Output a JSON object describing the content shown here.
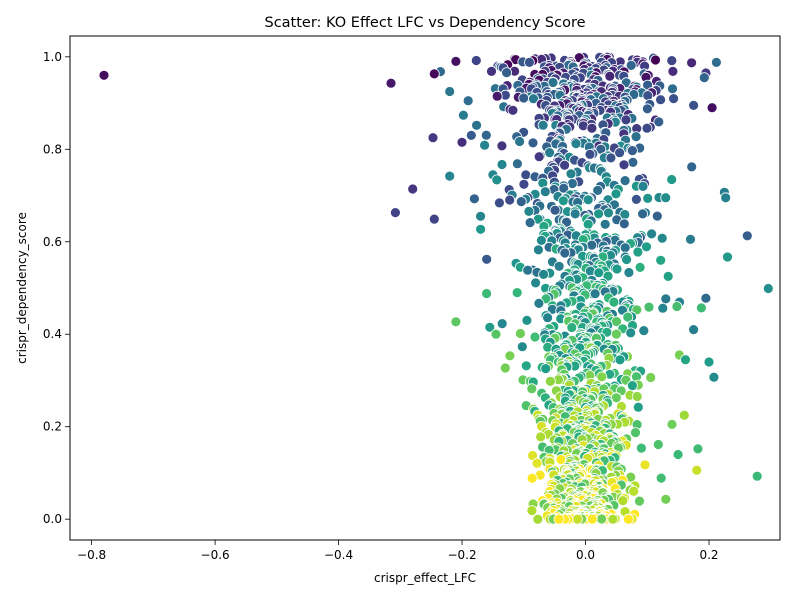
{
  "chart_data": {
    "type": "scatter",
    "title": "Scatter: KO Effect LFC vs Dependency Score",
    "xlabel": "crispr_effect_LFC",
    "ylabel": "crispr_dependency_score",
    "xlim": [
      -0.835,
      0.315
    ],
    "ylim": [
      -0.045,
      1.045
    ],
    "xticks": [
      -0.8,
      -0.6,
      -0.4,
      -0.2,
      0.0,
      0.2
    ],
    "xtick_labels": [
      "−0.8",
      "−0.6",
      "−0.4",
      "−0.2",
      "0.0",
      "0.2"
    ],
    "yticks": [
      0.0,
      0.2,
      0.4,
      0.6,
      0.8,
      1.0
    ],
    "ytick_labels": [
      "0.0",
      "0.2",
      "0.4",
      "0.6",
      "0.8",
      "1.0"
    ],
    "grid": false,
    "legend": "none",
    "colormap": "viridis",
    "marker_edge_color": "#ffffff",
    "outliers": [
      {
        "x": -0.78,
        "y": 0.96
      },
      {
        "x": -0.315,
        "y": 0.943
      },
      {
        "x": -0.308,
        "y": 0.663
      },
      {
        "x": -0.28,
        "y": 0.714
      },
      {
        "x": -0.245,
        "y": 0.649
      },
      {
        "x": -0.247,
        "y": 0.825
      },
      {
        "x": -0.21,
        "y": 0.427
      },
      {
        "x": -0.22,
        "y": 0.742
      },
      {
        "x": 0.208,
        "y": 0.307
      },
      {
        "x": 0.195,
        "y": 0.478
      },
      {
        "x": 0.225,
        "y": 0.707
      },
      {
        "x": 0.227,
        "y": 0.695
      },
      {
        "x": 0.23,
        "y": 0.567
      },
      {
        "x": 0.262,
        "y": 0.613
      },
      {
        "x": 0.278,
        "y": 0.093
      },
      {
        "x": 0.296,
        "y": 0.499
      },
      {
        "x": 0.18,
        "y": 0.106
      },
      {
        "x": 0.182,
        "y": 0.152
      },
      {
        "x": 0.175,
        "y": 0.41
      },
      {
        "x": 0.2,
        "y": 0.34
      },
      {
        "x": 0.172,
        "y": 0.762
      },
      {
        "x": 0.162,
        "y": 0.345
      },
      {
        "x": 0.16,
        "y": 0.225
      },
      {
        "x": 0.15,
        "y": 0.14
      },
      {
        "x": 0.152,
        "y": 0.355
      },
      {
        "x": 0.148,
        "y": 0.46
      },
      {
        "x": 0.17,
        "y": 0.605
      },
      {
        "x": 0.175,
        "y": 0.895
      },
      {
        "x": 0.205,
        "y": 0.89
      },
      {
        "x": 0.212,
        "y": 0.988
      },
      {
        "x": 0.195,
        "y": 0.965
      },
      {
        "x": -0.16,
        "y": 0.562
      },
      {
        "x": -0.15,
        "y": 0.745
      },
      {
        "x": -0.145,
        "y": 0.4
      },
      {
        "x": -0.155,
        "y": 0.415
      },
      {
        "x": -0.17,
        "y": 0.655
      },
      {
        "x": -0.17,
        "y": 0.627
      },
      {
        "x": -0.18,
        "y": 0.693
      },
      {
        "x": -0.2,
        "y": 0.815
      },
      {
        "x": -0.185,
        "y": 0.83
      },
      {
        "x": -0.19,
        "y": 0.905
      },
      {
        "x": -0.22,
        "y": 0.925
      },
      {
        "x": -0.245,
        "y": 0.963
      },
      {
        "x": -0.235,
        "y": 0.968
      },
      {
        "x": -0.21,
        "y": 0.99
      },
      {
        "x": -0.13,
        "y": 0.327
      },
      {
        "x": -0.135,
        "y": 0.423
      },
      {
        "x": 0.13,
        "y": 0.043
      },
      {
        "x": 0.14,
        "y": 0.205
      }
    ],
    "main_cluster": {
      "x_center": 0.0,
      "x_spread": 0.045,
      "y_range": [
        0.0,
        1.0
      ],
      "point_count": 1500
    }
  }
}
